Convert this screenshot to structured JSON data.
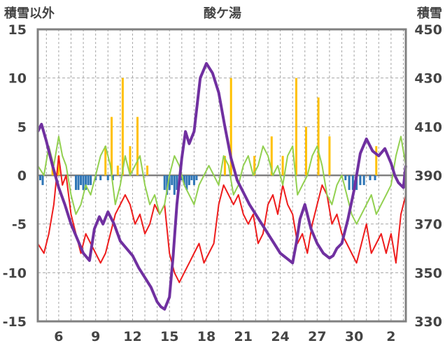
{
  "chart_data": {
    "type": "line",
    "title": "酸ケ湯",
    "left_axis_label": "積雪以外",
    "right_axis_label": "積雪",
    "left_ylim": [
      -15,
      15
    ],
    "left_yticks": [
      -15,
      -10,
      -5,
      0,
      5,
      10,
      15
    ],
    "right_ylim": [
      330,
      450
    ],
    "right_yticks": [
      330,
      350,
      370,
      390,
      410,
      430,
      450
    ],
    "x_ticks": [
      "6",
      "9",
      "12",
      "15",
      "18",
      "21",
      "24",
      "27",
      "30",
      "2"
    ],
    "x_tick_days": [
      6,
      9,
      12,
      15,
      18,
      21,
      24,
      27,
      30,
      33
    ],
    "x_range": [
      4.3,
      34.2
    ],
    "grid": true,
    "colors": {
      "temperature": "#ee1c1c",
      "yellow_bars": "#ffc000",
      "green_line": "#92d050",
      "blue_bars": "#2e75b6",
      "snow_depth": "#7030a0",
      "frame": "#808080"
    },
    "series": [
      {
        "axis": "left",
        "kind": "line",
        "color": "#ee1c1c",
        "x": [
          4.3,
          4.8,
          5.2,
          5.6,
          6.0,
          6.3,
          6.6,
          7.0,
          7.4,
          7.8,
          8.2,
          8.6,
          9.0,
          9.4,
          9.8,
          10.2,
          10.6,
          11.0,
          11.4,
          11.8,
          12.2,
          12.6,
          13.0,
          13.4,
          13.8,
          14.2,
          14.6,
          15.0,
          15.4,
          15.8,
          16.2,
          16.6,
          17.0,
          17.4,
          17.8,
          18.2,
          18.6,
          19.0,
          19.4,
          19.8,
          20.2,
          20.6,
          21.0,
          21.4,
          21.8,
          22.2,
          22.6,
          23.0,
          23.4,
          23.8,
          24.2,
          24.6,
          25.0,
          25.4,
          25.8,
          26.2,
          26.6,
          27.0,
          27.4,
          27.8,
          28.2,
          28.6,
          29.0,
          29.4,
          29.8,
          30.2,
          30.6,
          31.0,
          31.4,
          31.8,
          32.2,
          32.6,
          33.0,
          33.4,
          33.8,
          34.2
        ],
        "y": [
          -7,
          -8,
          -6,
          -3,
          2,
          -1,
          0,
          -4,
          -6,
          -8,
          -6,
          -7,
          -8,
          -9,
          -8,
          -6,
          -4,
          -3,
          -2,
          -3,
          -5,
          -4,
          -6,
          -5,
          -3,
          -4,
          -3,
          -8,
          -10,
          -11,
          -10,
          -9,
          -8,
          -7,
          -9,
          -8,
          -7,
          -3,
          -1,
          -2,
          -3,
          -2,
          -4,
          -5,
          -4,
          -7,
          -6,
          -3,
          -2,
          -4,
          -1,
          -3,
          -4,
          -7,
          -6,
          -8,
          -5,
          -3,
          -1,
          -2,
          -5,
          -4,
          -6,
          -7,
          -8,
          -9,
          -7,
          -5,
          -8,
          -7,
          -6,
          -8,
          -6,
          -9,
          -4,
          -2
        ]
      },
      {
        "axis": "left",
        "kind": "line",
        "color": "#92d050",
        "x": [
          4.3,
          4.8,
          5.2,
          5.6,
          6.0,
          6.3,
          6.6,
          7.0,
          7.4,
          7.8,
          8.2,
          8.6,
          9.0,
          9.4,
          9.8,
          10.2,
          10.6,
          11.0,
          11.4,
          11.8,
          12.2,
          12.6,
          13.0,
          13.4,
          13.8,
          14.2,
          14.6,
          15.0,
          15.4,
          15.8,
          16.2,
          16.6,
          17.0,
          17.4,
          17.8,
          18.2,
          18.6,
          19.0,
          19.4,
          19.8,
          20.2,
          20.6,
          21.0,
          21.4,
          21.8,
          22.2,
          22.6,
          23.0,
          23.4,
          23.8,
          24.2,
          24.6,
          25.0,
          25.4,
          25.8,
          26.2,
          26.6,
          27.0,
          27.4,
          27.8,
          28.2,
          28.6,
          29.0,
          29.4,
          29.8,
          30.2,
          30.6,
          31.0,
          31.4,
          31.8,
          32.2,
          32.6,
          33.0,
          33.4,
          33.8,
          34.2
        ],
        "y": [
          1,
          0,
          3,
          1,
          4,
          2,
          1,
          -2,
          -4,
          -3,
          -1,
          -2,
          0,
          2,
          3,
          1,
          -3,
          -1,
          2,
          0,
          1,
          2,
          -1,
          -3,
          -2,
          -4,
          -3,
          0,
          2,
          1,
          -1,
          -2,
          -3,
          -1,
          0,
          1,
          0,
          -1,
          2,
          1,
          -2,
          -1,
          1,
          2,
          0,
          1,
          3,
          2,
          0,
          1,
          -1,
          2,
          3,
          -2,
          -1,
          0,
          2,
          3,
          1,
          -2,
          -3,
          -1,
          0,
          -2,
          -4,
          -5,
          -4,
          -3,
          -2,
          -4,
          -3,
          -2,
          -1,
          2,
          4,
          1
        ]
      },
      {
        "axis": "left",
        "kind": "bars",
        "color": "#ffc000",
        "x": [
          5.5,
          6.0,
          9.8,
          10.3,
          10.8,
          11.2,
          11.8,
          12.4,
          13.2,
          19.5,
          20.0,
          21.9,
          23.3,
          24.2,
          25.3,
          26.1,
          27.1,
          28.0,
          31.8
        ],
        "y": [
          1,
          2,
          3,
          6,
          1,
          10,
          3,
          6,
          1,
          2,
          10,
          2,
          4,
          2,
          10,
          5,
          8,
          4,
          3
        ]
      },
      {
        "axis": "left",
        "kind": "bars",
        "color": "#2e75b6",
        "x": [
          4.5,
          4.7,
          7.4,
          7.6,
          7.8,
          8.0,
          8.2,
          8.4,
          8.6,
          9.0,
          9.4,
          10.0,
          10.4,
          14.6,
          14.8,
          15.0,
          15.2,
          15.4,
          15.6,
          15.8,
          16.0,
          16.2,
          16.4,
          16.6,
          16.8,
          17.0,
          17.2,
          29.3,
          29.6,
          29.9,
          30.2,
          30.5,
          30.8,
          31.3,
          31.7
        ],
        "y": [
          -0.5,
          -1,
          -1.5,
          -1.5,
          -1,
          -1.5,
          -1.5,
          -1,
          -1,
          -0.5,
          -0.5,
          -0.5,
          -0.5,
          -1.5,
          -2,
          -1.5,
          -1,
          -2,
          -1.5,
          -1,
          -0.5,
          -1,
          -1.5,
          -1,
          -0.5,
          -1,
          -0.5,
          -0.5,
          -1.5,
          -1.5,
          -1.5,
          -1,
          -1,
          -0.5,
          -0.5
        ]
      },
      {
        "axis": "right",
        "kind": "line",
        "color": "#7030a0",
        "x": [
          4.3,
          4.6,
          5.0,
          5.5,
          6.0,
          6.5,
          7.0,
          7.5,
          8.0,
          8.5,
          8.9,
          9.3,
          9.6,
          10.0,
          10.5,
          11.0,
          11.5,
          12.0,
          12.5,
          13.0,
          13.5,
          14.0,
          14.3,
          14.6,
          15.0,
          15.3,
          15.6,
          16.0,
          16.3,
          16.6,
          17.0,
          17.5,
          18.0,
          18.5,
          19.0,
          19.5,
          20.0,
          20.5,
          21.0,
          21.5,
          22.0,
          22.5,
          23.0,
          23.5,
          24.0,
          24.5,
          25.0,
          25.3,
          25.6,
          26.0,
          26.5,
          27.0,
          27.5,
          28.0,
          28.3,
          28.6,
          29.0,
          29.5,
          30.0,
          30.5,
          31.0,
          31.5,
          32.0,
          32.5,
          33.0,
          33.3,
          33.6,
          34.0,
          34.2
        ],
        "y": [
          408,
          411,
          404,
          394,
          385,
          378,
          370,
          364,
          358,
          355,
          368,
          373,
          370,
          375,
          370,
          363,
          360,
          357,
          352,
          348,
          344,
          338,
          336,
          335,
          340,
          357,
          378,
          397,
          408,
          403,
          408,
          430,
          436,
          432,
          424,
          410,
          397,
          388,
          383,
          378,
          374,
          370,
          366,
          362,
          358,
          356,
          354,
          362,
          372,
          378,
          368,
          362,
          358,
          356,
          357,
          360,
          362,
          372,
          384,
          399,
          405,
          400,
          398,
          401,
          395,
          390,
          387,
          385,
          394
        ]
      }
    ]
  }
}
